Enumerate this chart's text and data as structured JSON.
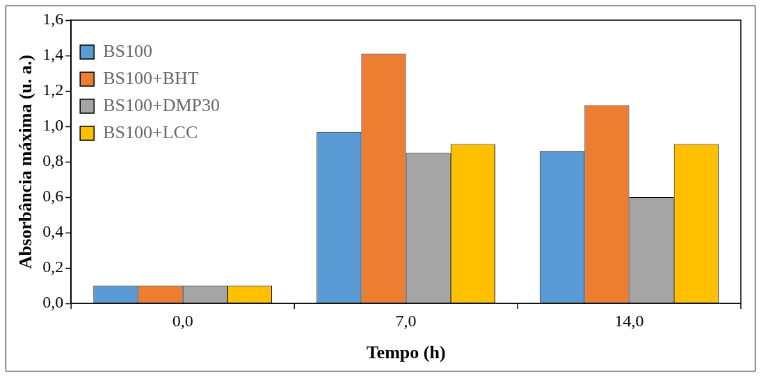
{
  "chart_data": {
    "type": "bar",
    "xlabel": "Tempo (h)",
    "ylabel": "Absorbância máxima (u. a.)",
    "categories": [
      "0,0",
      "7,0",
      "14,0"
    ],
    "series": [
      {
        "name": "BS100",
        "color": "#5b9bd5",
        "values": [
          0.1,
          0.97,
          0.86
        ]
      },
      {
        "name": "BS100+BHT",
        "color": "#ed7d31",
        "values": [
          0.1,
          1.41,
          1.12
        ]
      },
      {
        "name": "BS100+DMP30",
        "color": "#a5a5a5",
        "values": [
          0.1,
          0.85,
          0.6
        ]
      },
      {
        "name": "BS100+LCC",
        "color": "#ffc000",
        "values": [
          0.1,
          0.9,
          0.9
        ]
      }
    ],
    "ylim": [
      0,
      1.6
    ],
    "yticks": [
      {
        "value": 0,
        "label": "0,0"
      },
      {
        "value": 0.2,
        "label": "0,2"
      },
      {
        "value": 0.4,
        "label": "0,4"
      },
      {
        "value": 0.6,
        "label": "0,6"
      },
      {
        "value": 0.8,
        "label": "0,8"
      },
      {
        "value": 1.0,
        "label": "1,0"
      },
      {
        "value": 1.2,
        "label": "1,2"
      },
      {
        "value": 1.4,
        "label": "1,4"
      },
      {
        "value": 1.6,
        "label": "1,6"
      }
    ],
    "grid": false,
    "legend": "top left"
  }
}
